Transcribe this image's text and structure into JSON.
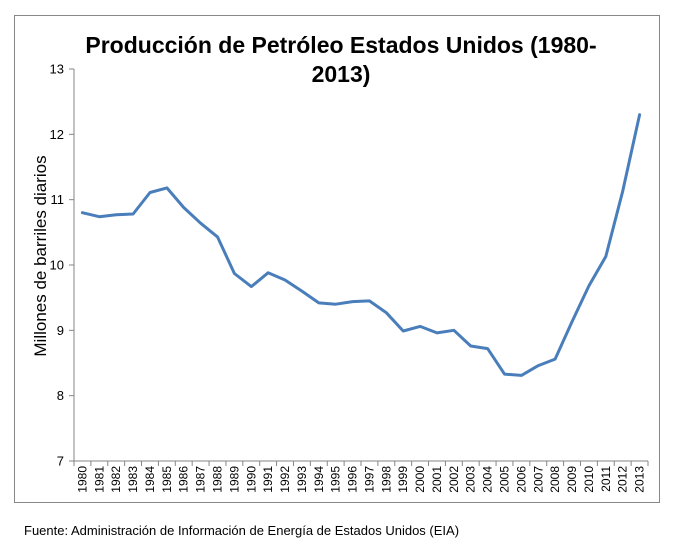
{
  "chart_data": {
    "type": "line",
    "title_lines": [
      "Producción de Petróleo Estados Unidos (1980-",
      "2013)"
    ],
    "ylabel": "Millones de barriles diarios",
    "xlabel": "",
    "ylim": [
      7,
      13
    ],
    "yticks": [
      7,
      8,
      9,
      10,
      11,
      12,
      13
    ],
    "grid": false,
    "legend": "none",
    "line_color": "#4a7ebb",
    "categories": [
      "1980",
      "1981",
      "1982",
      "1983",
      "1984",
      "1985",
      "1986",
      "1987",
      "1988",
      "1989",
      "1990",
      "1991",
      "1992",
      "1993",
      "1994",
      "1995",
      "1996",
      "1997",
      "1998",
      "1999",
      "2000",
      "2001",
      "2002",
      "2003",
      "2004",
      "2005",
      "2006",
      "2007",
      "2008",
      "2009",
      "2010",
      "2011",
      "2012",
      "2013"
    ],
    "series": [
      {
        "values": [
          10.8,
          10.74,
          10.77,
          10.78,
          11.11,
          11.18,
          10.88,
          10.64,
          10.43,
          9.87,
          9.67,
          9.88,
          9.77,
          9.6,
          9.42,
          9.4,
          9.44,
          9.45,
          9.27,
          8.99,
          9.06,
          8.96,
          9.0,
          8.76,
          8.72,
          8.33,
          8.31,
          8.46,
          8.56,
          9.13,
          9.68,
          10.13,
          11.13,
          12.3
        ]
      }
    ]
  },
  "source": {
    "label": "Fuente:",
    "text": "Administración de Información de Energía de Estados Unidos (EIA)"
  }
}
